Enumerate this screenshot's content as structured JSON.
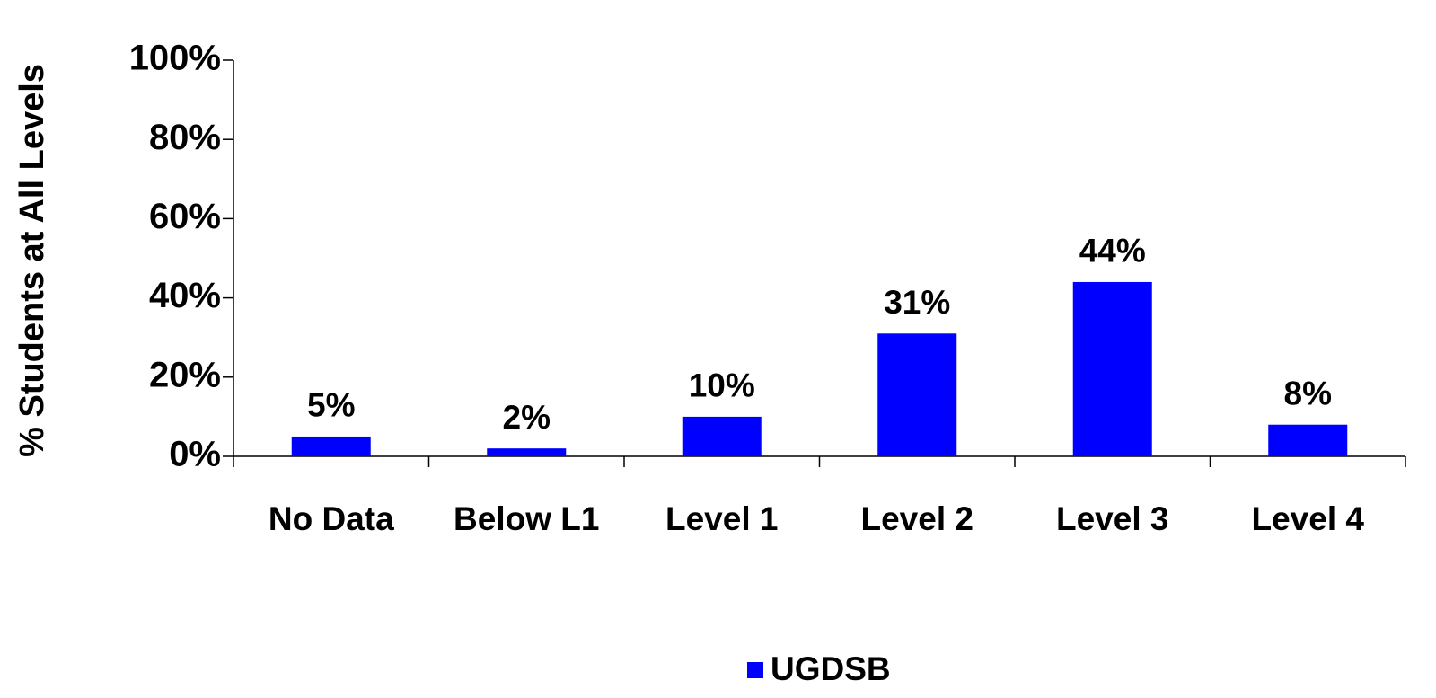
{
  "chart_data": {
    "type": "bar",
    "y_label": "% Students at All Levels",
    "categories": [
      "No Data",
      "Below L1",
      "Level 1",
      "Level 2",
      "Level 3",
      "Level 4"
    ],
    "series": [
      {
        "name": "UGDSB",
        "color": "#0000ff",
        "values": [
          5,
          2,
          10,
          31,
          44,
          8
        ],
        "value_labels": [
          "5%",
          "2%",
          "10%",
          "31%",
          "44%",
          "8%"
        ]
      }
    ],
    "ylim": [
      0,
      100
    ],
    "yticks": [
      {
        "value": 0,
        "label": "0%"
      },
      {
        "value": 20,
        "label": "20%"
      },
      {
        "value": 40,
        "label": "40%"
      },
      {
        "value": 60,
        "label": "60%"
      },
      {
        "value": 80,
        "label": "80%"
      },
      {
        "value": 100,
        "label": "100%"
      }
    ],
    "grid": false,
    "legend": "bottom"
  }
}
